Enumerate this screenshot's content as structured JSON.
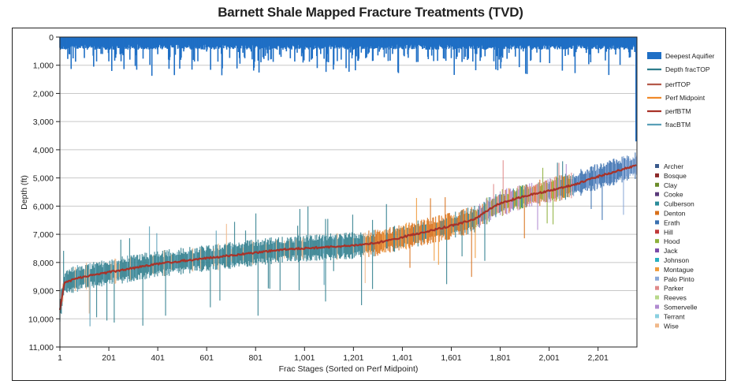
{
  "chart_data": {
    "type": "line",
    "title": "Barnett Shale Mapped Fracture Treatments (TVD)",
    "xlabel": "Frac Stages (Sorted on Perf Midpoint)",
    "ylabel": "Depth (ft)",
    "xlim": [
      1,
      2360
    ],
    "ylim": [
      0,
      11000
    ],
    "y_inverted": true,
    "x_ticks": [
      "1",
      "201",
      "401",
      "601",
      "801",
      "1,001",
      "1,201",
      "1,401",
      "1,601",
      "1,801",
      "2,001",
      "2,201"
    ],
    "x_tick_values": [
      1,
      201,
      401,
      601,
      801,
      1001,
      1201,
      1401,
      1601,
      1801,
      2001,
      2201
    ],
    "y_ticks": [
      "0",
      "1,000",
      "2,000",
      "3,000",
      "4,000",
      "5,000",
      "6,000",
      "7,000",
      "8,000",
      "9,000",
      "10,000",
      "11,000"
    ],
    "y_tick_values": [
      0,
      1000,
      2000,
      3000,
      4000,
      5000,
      6000,
      7000,
      8000,
      9000,
      10000,
      11000
    ],
    "grid": "horizontal",
    "legend_position": "right",
    "series": [
      {
        "name": "Deepest Aquifier",
        "color": "#1f6fc5",
        "style": "bar"
      },
      {
        "name": "Depth fracTOP",
        "color": "#2e7d8c",
        "style": "line"
      },
      {
        "name": "perfTOP",
        "color": "#b55a4a",
        "style": "line"
      },
      {
        "name": "Perf Midpoint",
        "color": "#f08a2a",
        "style": "line"
      },
      {
        "name": "perfBTM",
        "color": "#a83228",
        "style": "line"
      },
      {
        "name": "fracBTM",
        "color": "#5aa0b8",
        "style": "line"
      }
    ],
    "perf_midpoint_trend": {
      "x": [
        1,
        20,
        100,
        200,
        300,
        400,
        500,
        600,
        700,
        800,
        900,
        1000,
        1100,
        1200,
        1300,
        1400,
        1500,
        1600,
        1700,
        1750,
        1800,
        1900,
        2000,
        2100,
        2200,
        2300,
        2360
      ],
      "y": [
        9700,
        8700,
        8500,
        8350,
        8200,
        8050,
        7950,
        7850,
        7750,
        7650,
        7550,
        7500,
        7450,
        7400,
        7300,
        7100,
        6900,
        6700,
        6450,
        6150,
        5900,
        5650,
        5450,
        5250,
        4950,
        4700,
        4550
      ]
    },
    "county_legend": [
      {
        "name": "Archer",
        "color": "#3a5a8c"
      },
      {
        "name": "Bosque",
        "color": "#8c2a2a"
      },
      {
        "name": "Clay",
        "color": "#6b8c2a"
      },
      {
        "name": "Cooke",
        "color": "#5a3a7a"
      },
      {
        "name": "Culberson",
        "color": "#2a8c9a"
      },
      {
        "name": "Denton",
        "color": "#d8701a"
      },
      {
        "name": "Erath",
        "color": "#3a70b0"
      },
      {
        "name": "Hill",
        "color": "#c03a3a"
      },
      {
        "name": "Hood",
        "color": "#8cb03a"
      },
      {
        "name": "Jack",
        "color": "#7a4aa8"
      },
      {
        "name": "Johnson",
        "color": "#2ab0c0"
      },
      {
        "name": "Montague",
        "color": "#f09a3a"
      },
      {
        "name": "Palo Pinto",
        "color": "#8aa8d8"
      },
      {
        "name": "Parker",
        "color": "#e08a8a"
      },
      {
        "name": "Reeves",
        "color": "#b8d88a"
      },
      {
        "name": "Somervelle",
        "color": "#b08ad0"
      },
      {
        "name": "Terrant",
        "color": "#8ad0e0"
      },
      {
        "name": "Wise",
        "color": "#f0b88a"
      }
    ]
  }
}
